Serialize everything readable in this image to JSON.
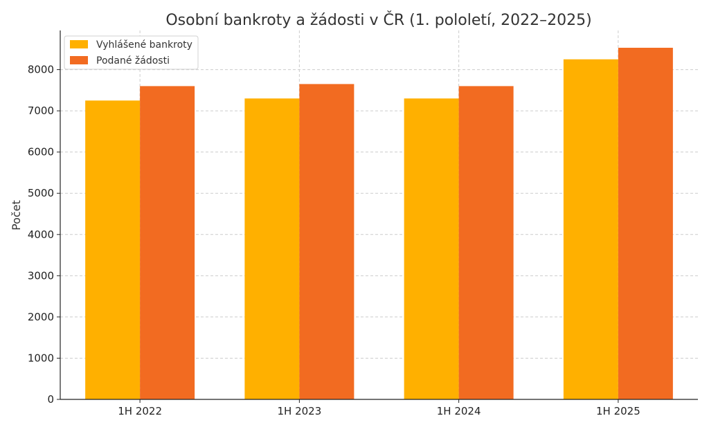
{
  "chart_data": {
    "type": "bar",
    "title": "Osobní bankroty a žádosti v ČR (1. pololetí, 2022–2025)",
    "xlabel": "",
    "ylabel": "Počet",
    "categories": [
      "1H 2022",
      "1H 2023",
      "1H 2024",
      "1H 2025"
    ],
    "series": [
      {
        "name": "Vyhlášené bankroty",
        "color": "#FFB000",
        "values": [
          7250,
          7300,
          7300,
          8250
        ]
      },
      {
        "name": "Podané žádosti",
        "color": "#F26B21",
        "values": [
          7600,
          7650,
          7600,
          8530
        ]
      }
    ],
    "yticks": [
      0,
      1000,
      2000,
      3000,
      4000,
      5000,
      6000,
      7000,
      8000
    ],
    "ylim": [
      0,
      8950
    ],
    "grid": true,
    "legend": "top-left"
  }
}
